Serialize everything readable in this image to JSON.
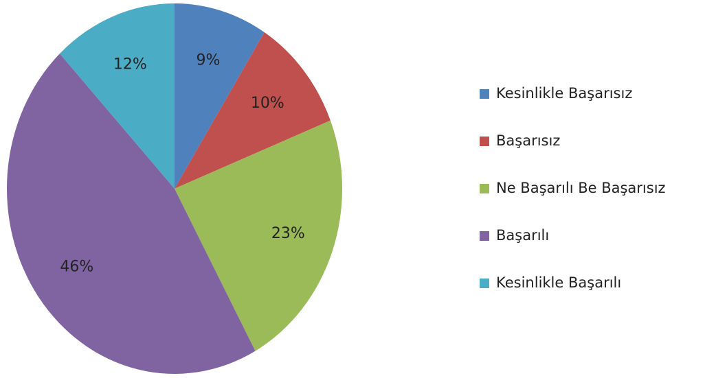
{
  "chart_data": {
    "type": "pie",
    "categories": [
      "Kesinlikle Başarısız",
      "Başarısız",
      "Ne Başarılı Be Başarısız",
      "Başarılı",
      "Kesinlikle Başarılı"
    ],
    "values": [
      9,
      10,
      23,
      46,
      12
    ],
    "value_labels": [
      "9%",
      "10%",
      "23%",
      "46%",
      "12%"
    ],
    "colors": [
      "#4f81bd",
      "#c0504d",
      "#9bbb59",
      "#8064a2",
      "#4bacc6"
    ],
    "legend": "right"
  }
}
